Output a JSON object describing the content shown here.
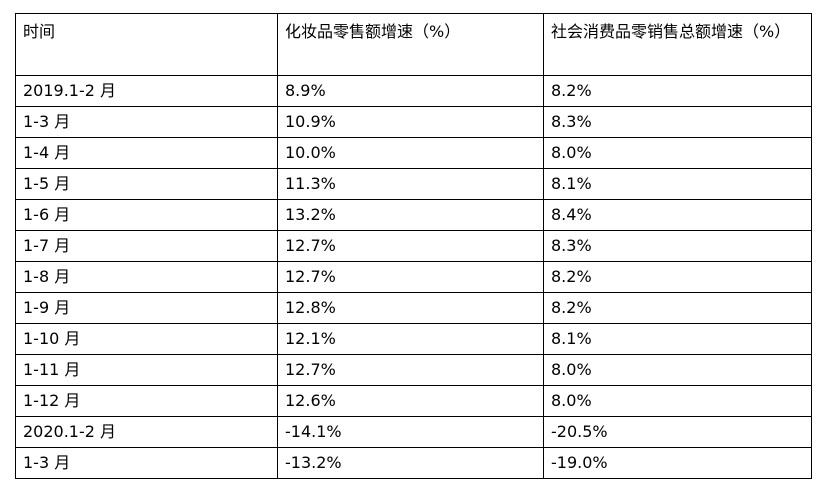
{
  "table": {
    "headers": [
      "时间",
      "化妆品零售额增速（%）",
      "社会消费品零销售总额增速（%）"
    ],
    "rows": [
      [
        "2019.1-2 月",
        "8.9%",
        "8.2%"
      ],
      [
        "1-3 月",
        "10.9%",
        "8.3%"
      ],
      [
        "1-4 月",
        "10.0%",
        "8.0%"
      ],
      [
        "1-5 月",
        "11.3%",
        "8.1%"
      ],
      [
        "1-6 月",
        "13.2%",
        "8.4%"
      ],
      [
        "1-7 月",
        "12.7%",
        "8.3%"
      ],
      [
        "1-8 月",
        "12.7%",
        "8.2%"
      ],
      [
        "1-9 月",
        "12.8%",
        "8.2%"
      ],
      [
        "1-10 月",
        "12.1%",
        "8.1%"
      ],
      [
        "1-11 月",
        "12.7%",
        "8.0%"
      ],
      [
        "1-12 月",
        "12.6%",
        "8.0%"
      ],
      [
        "2020.1-2 月",
        "-14.1%",
        "-20.5%"
      ],
      [
        "1-3 月",
        "-13.2%",
        "-19.0%"
      ]
    ]
  }
}
